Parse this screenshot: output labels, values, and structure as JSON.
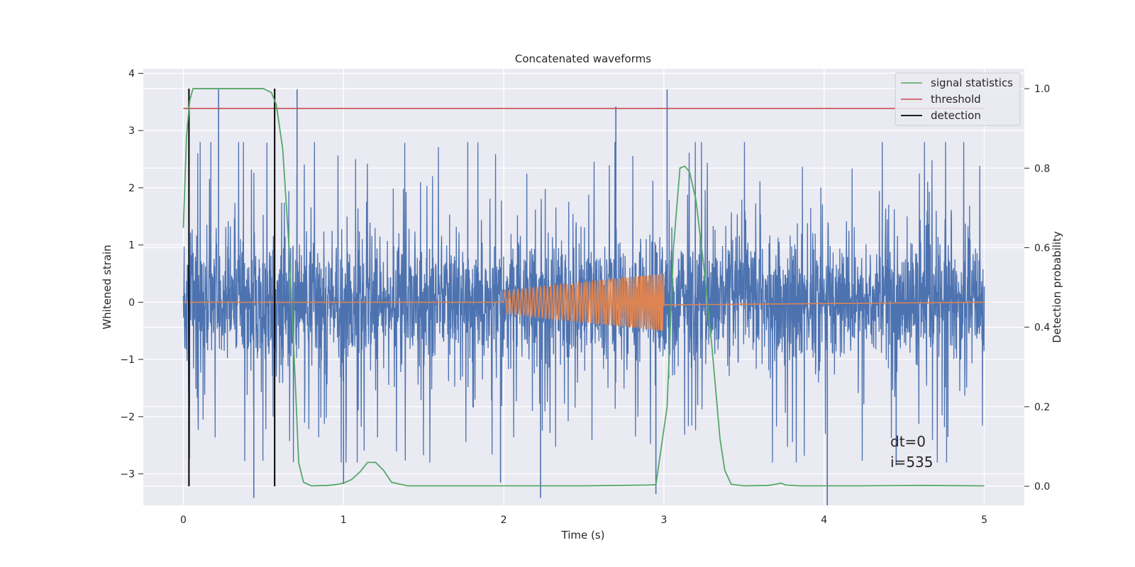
{
  "chart_data": {
    "type": "line",
    "title": "Concatenated waveforms",
    "xlabel": "Time (s)",
    "ylabel": "Whitened strain",
    "y2label": "Detection probability",
    "xlim": [
      -0.25,
      5.25
    ],
    "ylim": [
      -3.55,
      4.08
    ],
    "y2lim": [
      -0.048,
      1.05
    ],
    "xticks": [
      0,
      1,
      2,
      3,
      4,
      5
    ],
    "xtick_labels": [
      "0",
      "1",
      "2",
      "3",
      "4",
      "5"
    ],
    "yticks": [
      -3,
      -2,
      -1,
      0,
      1,
      2,
      3,
      4
    ],
    "ytick_labels": [
      "−3",
      "−2",
      "−1",
      "0",
      "1",
      "2",
      "3",
      "4"
    ],
    "y2ticks": [
      0.0,
      0.2,
      0.4,
      0.6,
      0.8,
      1.0
    ],
    "y2tick_labels": [
      "0.0",
      "0.2",
      "0.4",
      "0.6",
      "0.8",
      "1.0"
    ],
    "grid": true,
    "legend_position": "top-right",
    "legend": [
      {
        "label": "signal statistics",
        "color": "#55a868"
      },
      {
        "label": "threshold",
        "color": "#c44e52"
      },
      {
        "label": "detection",
        "color": "#000000"
      }
    ],
    "annotation": [
      "dt=0",
      "i=535"
    ],
    "series": [
      {
        "role": "whitened strain noise",
        "axis": "left",
        "color": "#4c72b0",
        "x_range": [
          0,
          5
        ],
        "typical_amplitude": 1.0,
        "peak_values": [
          {
            "x": 0.22,
            "y": 3.72
          },
          {
            "x": 0.71,
            "y": 3.72
          },
          {
            "x": 2.7,
            "y": 3.42
          },
          {
            "x": 3.02,
            "y": 3.72
          },
          {
            "x": 0.44,
            "y": -3.42
          },
          {
            "x": 1.0,
            "y": -3.18
          },
          {
            "x": 1.98,
            "y": -3.15
          },
          {
            "x": 2.23,
            "y": -3.42
          },
          {
            "x": 2.95,
            "y": -3.35
          },
          {
            "x": 4.02,
            "y": -3.55
          },
          {
            "x": 4.45,
            "y": -2.85
          }
        ]
      },
      {
        "role": "injected chirp",
        "axis": "left",
        "color": "#dd8452",
        "baseline": 0,
        "chirp_start": 2.0,
        "chirp_end": 3.0,
        "amplitude_start": 0.2,
        "amplitude_end": 0.5,
        "frequency_start": 35,
        "frequency_end": 80
      },
      {
        "name": "signal statistics",
        "axis": "right",
        "color": "#55a868",
        "x": [
          0.0,
          0.02,
          0.04,
          0.06,
          0.1,
          0.2,
          0.5,
          0.55,
          0.58,
          0.62,
          0.66,
          0.7,
          0.72,
          0.75,
          0.8,
          0.9,
          0.95,
          1.0,
          1.05,
          1.1,
          1.15,
          1.2,
          1.25,
          1.3,
          1.4,
          1.6,
          2.0,
          2.5,
          2.9,
          2.95,
          3.02,
          3.06,
          3.1,
          3.13,
          3.16,
          3.2,
          3.25,
          3.3,
          3.35,
          3.38,
          3.42,
          3.5,
          3.65,
          3.7,
          3.73,
          3.76,
          3.85,
          4.0,
          4.2,
          4.6,
          5.0
        ],
        "values": [
          0.65,
          0.88,
          0.97,
          1.0,
          1.0,
          1.0,
          1.0,
          0.99,
          0.96,
          0.85,
          0.6,
          0.25,
          0.06,
          0.01,
          0.001,
          0.002,
          0.004,
          0.008,
          0.017,
          0.035,
          0.06,
          0.06,
          0.04,
          0.01,
          0.001,
          0.001,
          0.001,
          0.001,
          0.003,
          0.004,
          0.2,
          0.6,
          0.8,
          0.805,
          0.79,
          0.72,
          0.55,
          0.35,
          0.12,
          0.04,
          0.005,
          0.001,
          0.002,
          0.005,
          0.008,
          0.003,
          0.001,
          0.001,
          0.001,
          0.002,
          0.001
        ]
      },
      {
        "name": "threshold",
        "axis": "right",
        "color": "#c44e52",
        "x": [
          0,
          5
        ],
        "values": [
          0.95,
          0.95
        ]
      },
      {
        "name": "detection",
        "axis": "right",
        "color": "#000000",
        "x": [
          0.035,
          0.57
        ],
        "values": [
          1.0,
          1.0
        ],
        "from": 0
      }
    ]
  }
}
